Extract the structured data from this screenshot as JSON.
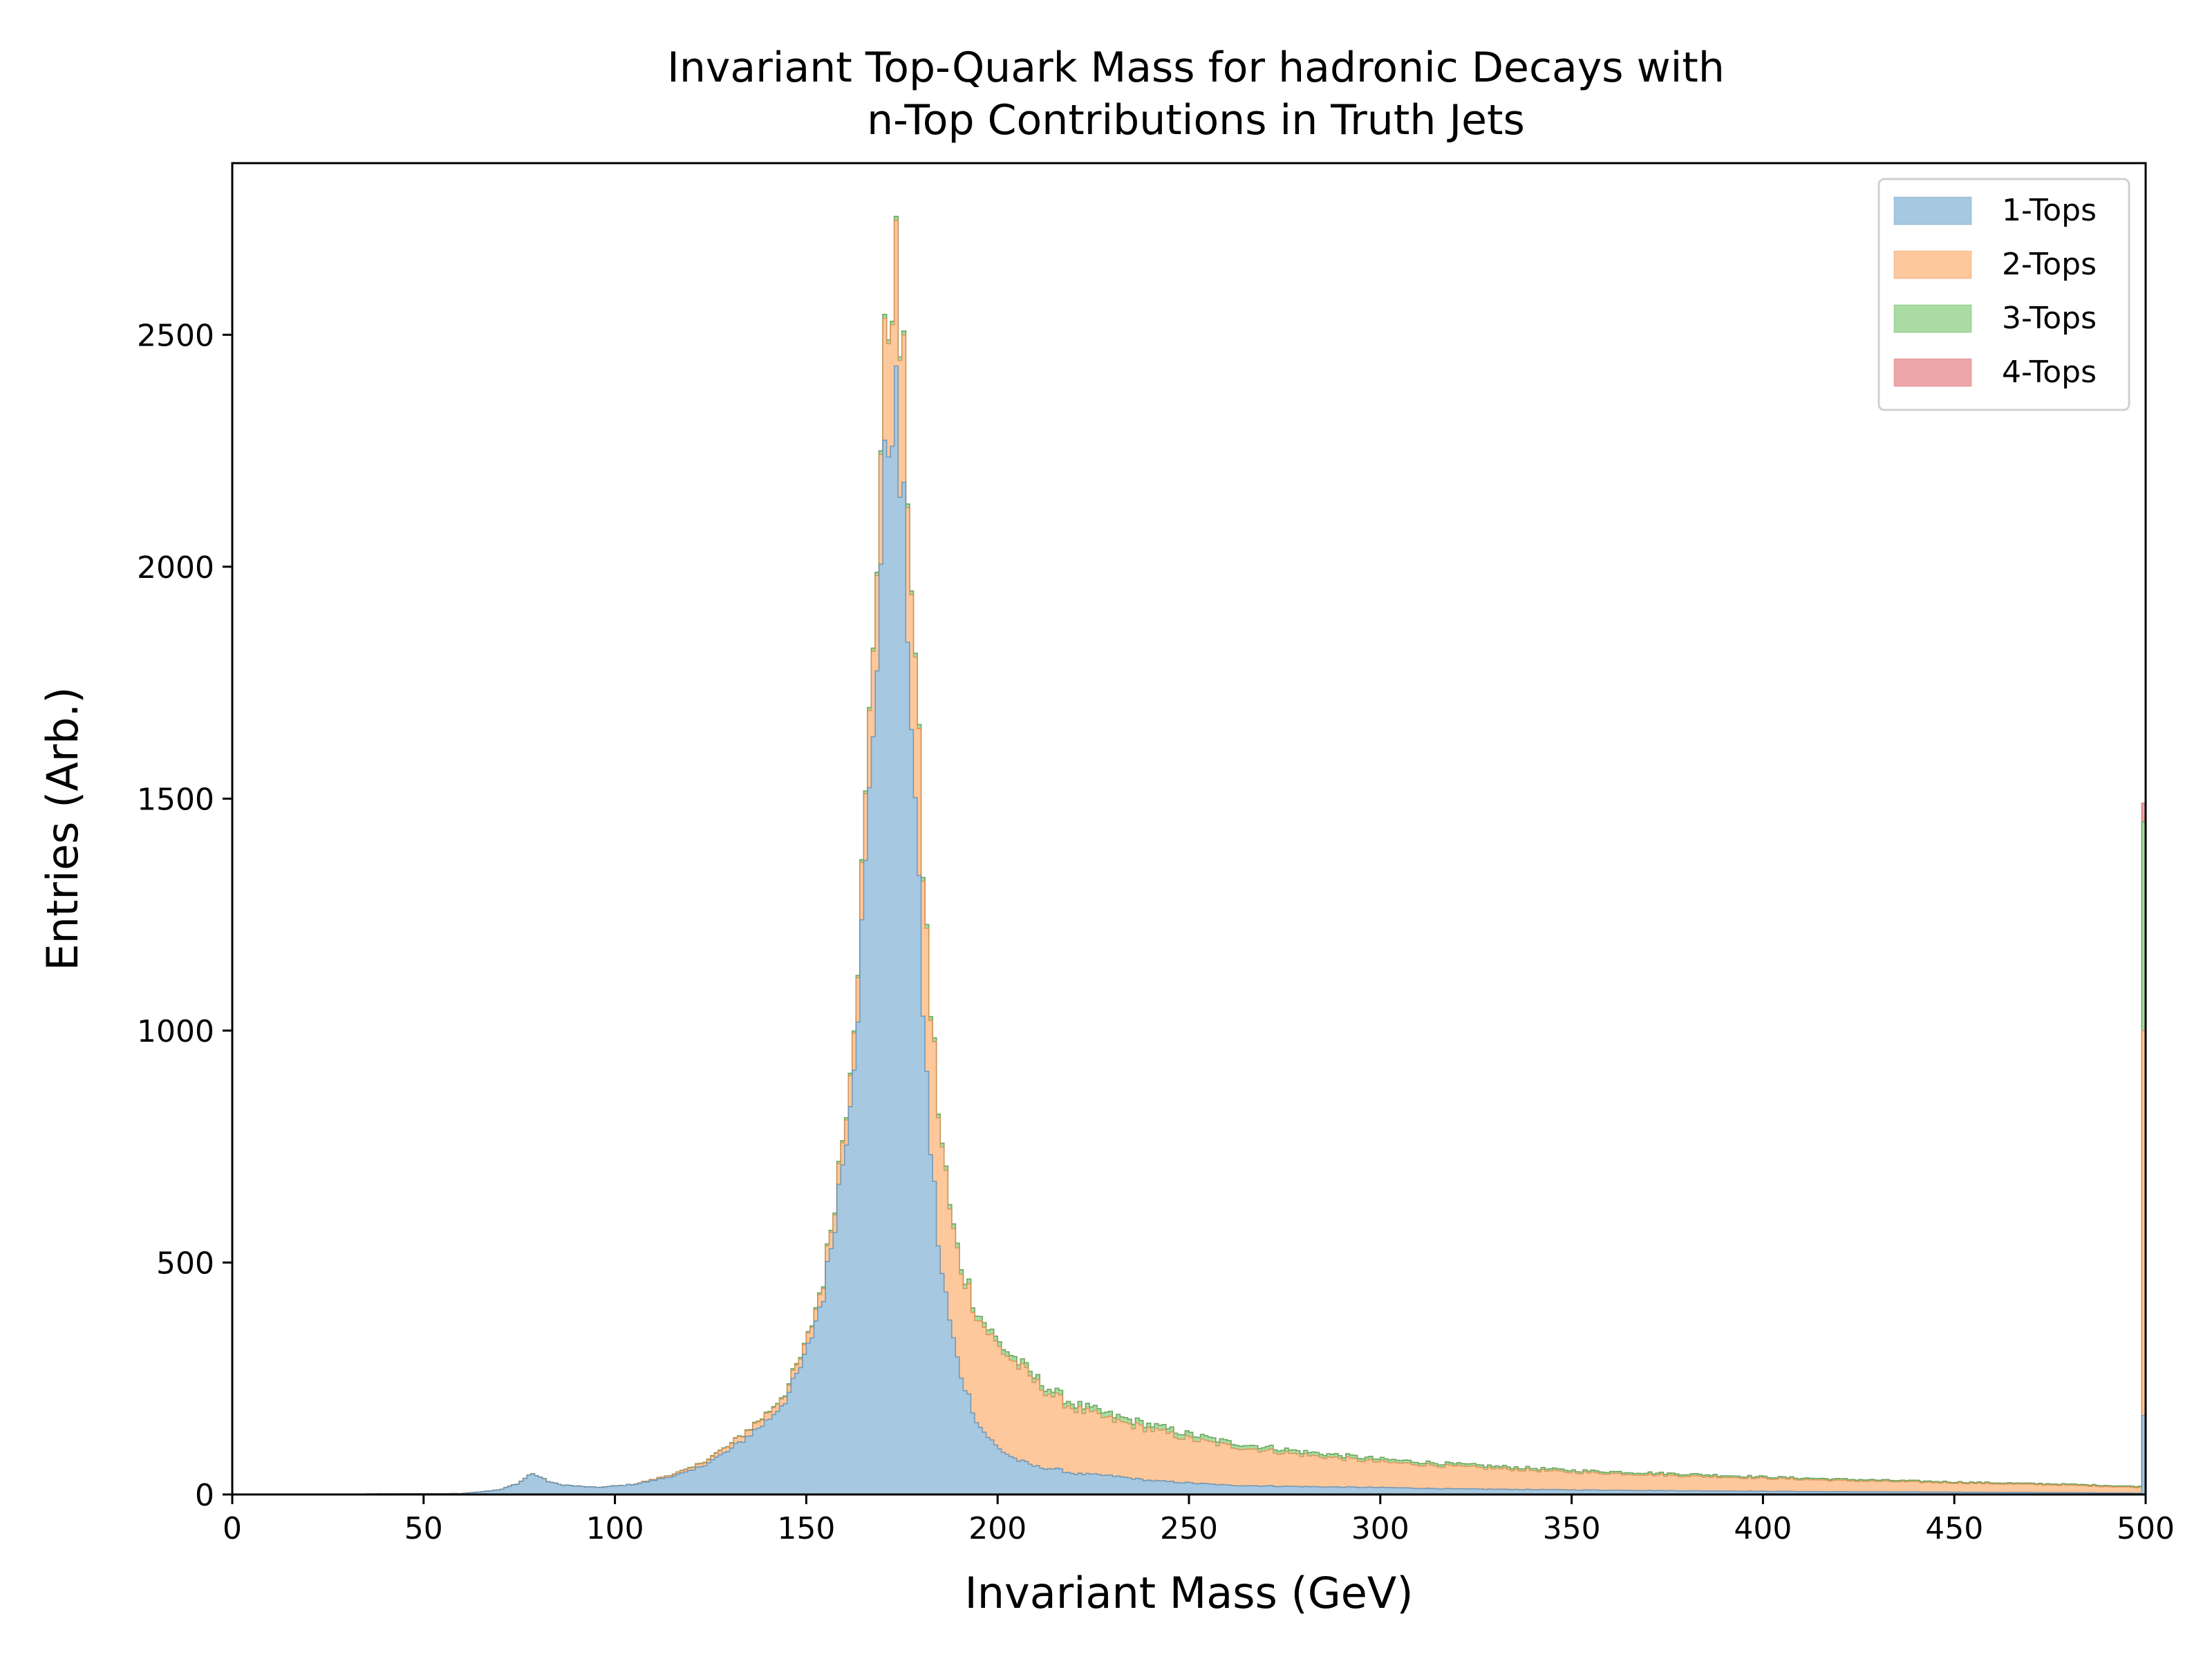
{
  "chart_data": {
    "type": "area",
    "histogram": "stacked-step",
    "title_lines": [
      "Invariant Top-Quark Mass for hadronic Decays with",
      "n-Top Contributions in Truth Jets"
    ],
    "xlabel": "Invariant Mass (GeV)",
    "ylabel": "Entries (Arb.)",
    "xlim": [
      0,
      500
    ],
    "ylim": [
      0,
      2870
    ],
    "xticks": [
      0,
      50,
      100,
      150,
      200,
      250,
      300,
      350,
      400,
      450,
      500
    ],
    "yticks": [
      0,
      500,
      1000,
      1500,
      2000,
      2500
    ],
    "bin_width": 1,
    "grid": false,
    "legend_position": "top-right",
    "anchors": {
      "x": [
        0,
        60,
        70,
        75,
        78,
        80,
        82,
        85,
        90,
        95,
        100,
        105,
        110,
        120,
        130,
        140,
        145,
        150,
        155,
        160,
        163,
        166,
        168,
        170,
        172,
        173,
        174,
        176,
        178,
        180,
        182,
        185,
        188,
        190,
        195,
        200,
        205,
        210,
        215,
        220,
        230,
        240,
        250,
        260,
        280,
        300,
        320,
        350,
        380,
        400,
        420,
        450,
        480,
        499
      ],
      "cumulative_values": {
        "1-Tops": [
          0,
          2,
          10,
          25,
          45,
          40,
          30,
          22,
          18,
          15,
          18,
          22,
          30,
          50,
          95,
          160,
          210,
          300,
          450,
          750,
          1000,
          1400,
          1750,
          2100,
          2350,
          2400,
          2250,
          2000,
          1600,
          1150,
          800,
          500,
          350,
          270,
          150,
          100,
          75,
          60,
          55,
          45,
          40,
          30,
          25,
          20,
          17,
          15,
          12,
          10,
          8,
          7,
          6,
          5,
          4,
          3
        ],
        "2-Tops": [
          0,
          2,
          10,
          25,
          45,
          40,
          30,
          22,
          18,
          15,
          18,
          22,
          32,
          55,
          105,
          175,
          225,
          320,
          480,
          800,
          1090,
          1550,
          1950,
          2350,
          2600,
          2700,
          2550,
          2300,
          1900,
          1450,
          1100,
          780,
          580,
          500,
          380,
          320,
          280,
          240,
          210,
          185,
          160,
          140,
          120,
          105,
          85,
          70,
          60,
          48,
          40,
          35,
          30,
          25,
          20,
          15
        ],
        "3-Tops": [
          0,
          2,
          10,
          25,
          45,
          40,
          30,
          22,
          18,
          15,
          18,
          22,
          32,
          56,
          106,
          177,
          228,
          323,
          484,
          805,
          1095,
          1556,
          1957,
          2358,
          2608,
          2708,
          2558,
          2308,
          1908,
          1458,
          1108,
          788,
          590,
          510,
          390,
          330,
          290,
          250,
          220,
          195,
          170,
          150,
          130,
          113,
          92,
          76,
          65,
          52,
          44,
          38,
          33,
          27,
          22,
          17
        ],
        "4-Tops": [
          0,
          2,
          10,
          25,
          45,
          40,
          30,
          22,
          18,
          15,
          18,
          22,
          32,
          56,
          106,
          177,
          228,
          323,
          484,
          805,
          1095,
          1556,
          1957,
          2358,
          2608,
          2708,
          2558,
          2308,
          1908,
          1458,
          1108,
          788,
          590,
          510,
          390,
          330,
          290,
          250,
          220,
          195,
          170,
          150,
          130,
          113,
          92,
          76,
          65,
          52,
          44,
          38,
          33,
          27,
          22,
          17
        ]
      }
    },
    "overflow_bin": {
      "x": 499,
      "cumulative_values": {
        "1-Tops": 170,
        "2-Tops": 1000,
        "3-Tops": 1450,
        "4-Tops": 1490
      }
    },
    "series": [
      {
        "name": "1-Tops",
        "color": "#a6c8e0",
        "edge_color": "#5a8ab0"
      },
      {
        "name": "2-Tops",
        "color": "#fdc89c",
        "edge_color": "#d9884a"
      },
      {
        "name": "3-Tops",
        "color": "#a9dba3",
        "edge_color": "#4fa84c"
      },
      {
        "name": "4-Tops",
        "color": "#eda7aa",
        "edge_color": "#c95b5f"
      }
    ]
  }
}
